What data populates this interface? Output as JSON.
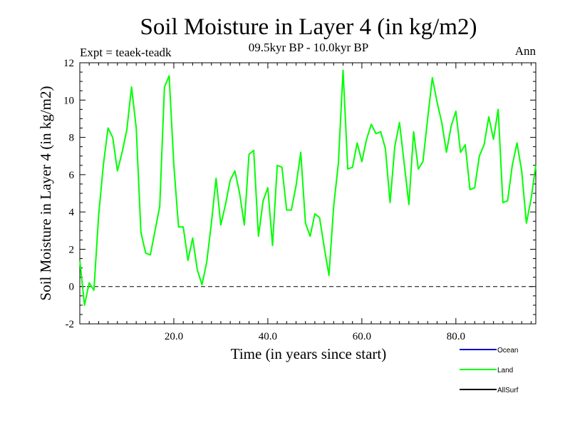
{
  "chart_data": {
    "type": "line",
    "title": "Soil Moisture in Layer 4 (in kg/m2)",
    "subtitle": "09.5kyr BP - 10.0kyr BP",
    "left_label": "Expt = teaek-teadk",
    "right_label": "Ann",
    "xlabel": "Time (in years since start)",
    "ylabel": "Soil Moisture in Layer 4 (in kg/m2)",
    "xlim": [
      0,
      97
    ],
    "ylim": [
      -2,
      12
    ],
    "x_ticks": [
      20,
      40,
      60,
      80
    ],
    "x_tick_labels": [
      "20.0",
      "40.0",
      "60.0",
      "80.0"
    ],
    "y_ticks": [
      -2,
      0,
      2,
      4,
      6,
      8,
      10,
      12
    ],
    "y_tick_labels": [
      "-2",
      "0",
      "2",
      "4",
      "6",
      "8",
      "10",
      "12"
    ],
    "zero_line": 0,
    "legend": [
      {
        "name": "Ocean",
        "color": "#0000cc"
      },
      {
        "name": "Land",
        "color": "#00ff00"
      },
      {
        "name": "AllSurf",
        "color": "#000000"
      }
    ],
    "series": [
      {
        "name": "Land",
        "color": "#00ff00",
        "x": [
          0,
          1,
          2,
          3,
          4,
          5,
          6,
          7,
          8,
          9,
          10,
          11,
          12,
          13,
          14,
          15,
          16,
          17,
          18,
          19,
          20,
          21,
          22,
          23,
          24,
          25,
          26,
          27,
          28,
          29,
          30,
          31,
          32,
          33,
          34,
          35,
          36,
          37,
          38,
          39,
          40,
          41,
          42,
          43,
          44,
          45,
          46,
          47,
          48,
          49,
          50,
          51,
          52,
          53,
          54,
          55,
          56,
          57,
          58,
          59,
          60,
          61,
          62,
          63,
          64,
          65,
          66,
          67,
          68,
          69,
          70,
          71,
          72,
          73,
          74,
          75,
          76,
          77,
          78,
          79,
          80,
          81,
          82,
          83,
          84,
          85,
          86,
          87,
          88,
          89,
          90,
          91,
          92,
          93,
          94,
          95,
          96,
          97
        ],
        "values": [
          1.4,
          -1.0,
          0.2,
          -0.2,
          3.8,
          6.5,
          8.5,
          8.0,
          6.2,
          7.2,
          8.4,
          10.7,
          8.5,
          2.9,
          1.8,
          1.7,
          3.0,
          4.3,
          10.7,
          11.3,
          6.5,
          3.2,
          3.2,
          1.4,
          2.6,
          0.9,
          0.1,
          1.3,
          3.4,
          5.8,
          3.3,
          4.4,
          5.7,
          6.2,
          5.0,
          3.3,
          7.1,
          7.3,
          2.7,
          4.6,
          5.3,
          2.2,
          6.5,
          6.4,
          4.1,
          4.1,
          5.4,
          7.2,
          3.4,
          2.7,
          3.9,
          3.7,
          2.1,
          0.6,
          4.3,
          6.6,
          11.6,
          6.3,
          6.4,
          7.7,
          6.7,
          7.9,
          8.7,
          8.2,
          8.3,
          7.4,
          4.5,
          7.5,
          8.8,
          6.6,
          4.4,
          8.3,
          6.3,
          6.7,
          9.0,
          11.2,
          9.9,
          8.8,
          7.2,
          8.6,
          9.4,
          7.2,
          7.6,
          5.2,
          5.3,
          7.0,
          7.6,
          9.1,
          7.9,
          9.5,
          4.5,
          4.6,
          6.5,
          7.7,
          6.2,
          3.4,
          4.7,
          6.5
        ]
      }
    ]
  }
}
